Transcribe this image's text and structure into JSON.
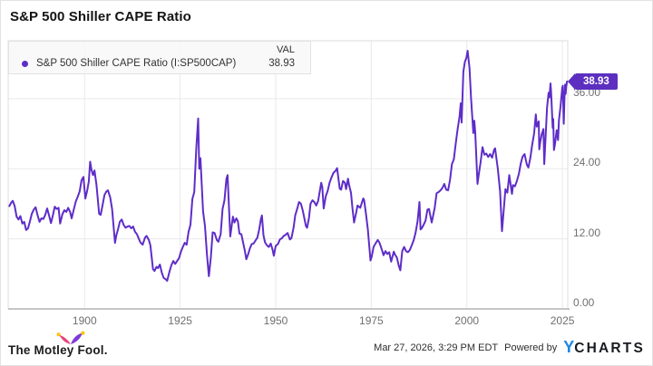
{
  "header": {
    "title": "S&P 500 Shiller CAPE Ratio"
  },
  "legend": {
    "val_header": "VAL",
    "series": [
      {
        "label": "S&P 500 Shiller CAPE Ratio (I:SP500CAP)",
        "value": "38.93",
        "color": "#5e2dc8"
      }
    ]
  },
  "value_tag": {
    "text": "38.93",
    "color": "#5c2fc0"
  },
  "footer": {
    "brand": "The Motley Fool.",
    "timestamp": "Mar 27, 2026, 3:29 PM EDT",
    "powered_by": "Powered by",
    "ycharts": {
      "y": "Y",
      "charts": "CHARTS"
    }
  },
  "chart_data": {
    "type": "line",
    "title": "S&P 500 Shiller CAPE Ratio",
    "series_name": "S&P 500 Shiller CAPE Ratio (I:SP500CAP)",
    "last_value": 38.93,
    "line_color": "#5e2dc8",
    "grid": true,
    "legend_position": "top-left",
    "x_range": [
      1880,
      2026.4
    ],
    "y_range": [
      0,
      45.9
    ],
    "x_ticks": [
      {
        "v": 1900,
        "label": "1900"
      },
      {
        "v": 1925,
        "label": "1925"
      },
      {
        "v": 1950,
        "label": "1950"
      },
      {
        "v": 1975,
        "label": "1975"
      },
      {
        "v": 2000,
        "label": "2000"
      },
      {
        "v": 2025,
        "label": "2025"
      }
    ],
    "y_ticks": [
      {
        "v": 0,
        "label": "0.00"
      },
      {
        "v": 12,
        "label": "12.00"
      },
      {
        "v": 24,
        "label": "24.00"
      },
      {
        "v": 36,
        "label": "36.00"
      }
    ],
    "points": [
      [
        1880.3,
        17.6
      ],
      [
        1880.8,
        18.2
      ],
      [
        1881.2,
        18.5
      ],
      [
        1881.7,
        17.6
      ],
      [
        1882.2,
        15.8
      ],
      [
        1882.7,
        15.3
      ],
      [
        1883.2,
        15.9
      ],
      [
        1883.7,
        14.6
      ],
      [
        1884.2,
        14.9
      ],
      [
        1884.7,
        13.5
      ],
      [
        1885.2,
        13.8
      ],
      [
        1885.7,
        15.0
      ],
      [
        1886.2,
        16.3
      ],
      [
        1886.7,
        17.0
      ],
      [
        1887.2,
        17.4
      ],
      [
        1887.7,
        16.0
      ],
      [
        1888.2,
        14.9
      ],
      [
        1888.7,
        15.5
      ],
      [
        1889.2,
        15.4
      ],
      [
        1889.7,
        16.1
      ],
      [
        1890.2,
        17.2
      ],
      [
        1890.7,
        16.0
      ],
      [
        1891.2,
        14.7
      ],
      [
        1891.7,
        16.0
      ],
      [
        1892.2,
        17.5
      ],
      [
        1892.7,
        17.1
      ],
      [
        1893.2,
        17.3
      ],
      [
        1893.6,
        14.6
      ],
      [
        1894.2,
        16.2
      ],
      [
        1894.7,
        16.9
      ],
      [
        1895.2,
        16.6
      ],
      [
        1895.7,
        17.3
      ],
      [
        1896.2,
        16.6
      ],
      [
        1896.6,
        15.5
      ],
      [
        1897.2,
        17.1
      ],
      [
        1897.7,
        18.4
      ],
      [
        1898.2,
        19.2
      ],
      [
        1898.7,
        20.1
      ],
      [
        1899.2,
        22.0
      ],
      [
        1899.7,
        22.6
      ],
      [
        1900.2,
        18.9
      ],
      [
        1900.7,
        20.3
      ],
      [
        1901.1,
        21.8
      ],
      [
        1901.45,
        25.2
      ],
      [
        1901.8,
        23.8
      ],
      [
        1902.2,
        22.9
      ],
      [
        1902.6,
        23.7
      ],
      [
        1903.1,
        21.2
      ],
      [
        1903.8,
        16.3
      ],
      [
        1904.2,
        16.1
      ],
      [
        1904.8,
        18.1
      ],
      [
        1905.2,
        19.5
      ],
      [
        1905.7,
        20.1
      ],
      [
        1906.1,
        20.3
      ],
      [
        1906.7,
        19.1
      ],
      [
        1907.2,
        17.1
      ],
      [
        1907.95,
        11.3
      ],
      [
        1908.3,
        12.6
      ],
      [
        1908.8,
        13.8
      ],
      [
        1909.2,
        14.9
      ],
      [
        1909.7,
        15.3
      ],
      [
        1910.2,
        14.4
      ],
      [
        1910.7,
        13.9
      ],
      [
        1911.2,
        14.1
      ],
      [
        1911.7,
        14.2
      ],
      [
        1912.2,
        13.8
      ],
      [
        1912.7,
        14.1
      ],
      [
        1913.2,
        13.2
      ],
      [
        1913.7,
        12.8
      ],
      [
        1914.2,
        12.0
      ],
      [
        1914.6,
        11.4
      ],
      [
        1915.2,
        11.0
      ],
      [
        1915.8,
        12.2
      ],
      [
        1916.2,
        12.5
      ],
      [
        1916.8,
        11.8
      ],
      [
        1917.2,
        10.9
      ],
      [
        1917.9,
        6.8
      ],
      [
        1918.3,
        6.5
      ],
      [
        1918.8,
        7.2
      ],
      [
        1919.2,
        7.0
      ],
      [
        1919.7,
        7.6
      ],
      [
        1920.2,
        6.2
      ],
      [
        1920.7,
        5.3
      ],
      [
        1921.2,
        5.1
      ],
      [
        1921.6,
        4.8
      ],
      [
        1922.2,
        6.4
      ],
      [
        1922.7,
        7.5
      ],
      [
        1923.2,
        8.2
      ],
      [
        1923.7,
        7.7
      ],
      [
        1924.2,
        8.2
      ],
      [
        1924.7,
        8.7
      ],
      [
        1925.2,
        9.8
      ],
      [
        1925.7,
        10.6
      ],
      [
        1926.2,
        11.3
      ],
      [
        1926.7,
        11.0
      ],
      [
        1927.2,
        13.2
      ],
      [
        1927.7,
        14.4
      ],
      [
        1928.2,
        18.8
      ],
      [
        1928.7,
        20.0
      ],
      [
        1929.2,
        27.4
      ],
      [
        1929.7,
        32.6
      ],
      [
        1930.0,
        24.0
      ],
      [
        1930.3,
        25.8
      ],
      [
        1931.0,
        16.7
      ],
      [
        1931.5,
        14.2
      ],
      [
        1932.0,
        9.3
      ],
      [
        1932.5,
        5.6
      ],
      [
        1933.0,
        8.7
      ],
      [
        1933.5,
        13.1
      ],
      [
        1934.0,
        13.0
      ],
      [
        1934.6,
        11.8
      ],
      [
        1935.0,
        11.5
      ],
      [
        1935.6,
        12.8
      ],
      [
        1936.1,
        17.1
      ],
      [
        1936.6,
        18.6
      ],
      [
        1937.1,
        22.2
      ],
      [
        1937.4,
        22.9
      ],
      [
        1938.1,
        12.4
      ],
      [
        1938.8,
        15.8
      ],
      [
        1939.2,
        14.8
      ],
      [
        1939.7,
        15.5
      ],
      [
        1940.1,
        15.0
      ],
      [
        1940.5,
        12.9
      ],
      [
        1941.0,
        12.8
      ],
      [
        1941.9,
        10.0
      ],
      [
        1942.3,
        8.5
      ],
      [
        1942.8,
        9.4
      ],
      [
        1943.2,
        10.3
      ],
      [
        1943.7,
        11.1
      ],
      [
        1944.2,
        11.2
      ],
      [
        1944.7,
        11.7
      ],
      [
        1945.2,
        12.2
      ],
      [
        1945.7,
        13.7
      ],
      [
        1946.1,
        15.3
      ],
      [
        1946.4,
        16.0
      ],
      [
        1946.8,
        12.6
      ],
      [
        1947.2,
        11.4
      ],
      [
        1947.7,
        10.9
      ],
      [
        1948.2,
        10.6
      ],
      [
        1948.7,
        11.2
      ],
      [
        1949.2,
        10.1
      ],
      [
        1949.5,
        9.1
      ],
      [
        1950.0,
        10.8
      ],
      [
        1950.6,
        11.1
      ],
      [
        1951.1,
        11.9
      ],
      [
        1951.6,
        12.1
      ],
      [
        1952.1,
        12.5
      ],
      [
        1952.6,
        12.7
      ],
      [
        1953.1,
        13.0
      ],
      [
        1953.7,
        11.9
      ],
      [
        1954.1,
        12.1
      ],
      [
        1954.7,
        14.0
      ],
      [
        1955.1,
        16.0
      ],
      [
        1955.7,
        17.3
      ],
      [
        1956.1,
        18.3
      ],
      [
        1956.6,
        18.0
      ],
      [
        1957.1,
        16.8
      ],
      [
        1957.9,
        14.2
      ],
      [
        1958.2,
        13.9
      ],
      [
        1958.7,
        15.6
      ],
      [
        1959.1,
        18.0
      ],
      [
        1959.6,
        18.6
      ],
      [
        1960.1,
        18.3
      ],
      [
        1960.6,
        17.7
      ],
      [
        1961.1,
        18.5
      ],
      [
        1961.9,
        21.6
      ],
      [
        1962.2,
        20.8
      ],
      [
        1962.55,
        17.2
      ],
      [
        1963.1,
        19.3
      ],
      [
        1963.6,
        20.2
      ],
      [
        1964.1,
        21.6
      ],
      [
        1964.6,
        22.5
      ],
      [
        1965.1,
        23.3
      ],
      [
        1965.6,
        23.6
      ],
      [
        1966.05,
        24.1
      ],
      [
        1966.75,
        20.6
      ],
      [
        1967.1,
        20.4
      ],
      [
        1967.6,
        21.9
      ],
      [
        1968.1,
        21.6
      ],
      [
        1968.4,
        20.5
      ],
      [
        1968.9,
        22.3
      ],
      [
        1969.2,
        21.2
      ],
      [
        1969.7,
        19.9
      ],
      [
        1970.1,
        17.1
      ],
      [
        1970.5,
        14.8
      ],
      [
        1971.1,
        16.6
      ],
      [
        1971.4,
        17.7
      ],
      [
        1972.1,
        17.3
      ],
      [
        1972.9,
        18.9
      ],
      [
        1973.1,
        18.7
      ],
      [
        1973.6,
        16.3
      ],
      [
        1974.1,
        13.6
      ],
      [
        1974.8,
        8.3
      ],
      [
        1975.1,
        8.9
      ],
      [
        1975.6,
        10.6
      ],
      [
        1976.1,
        11.2
      ],
      [
        1976.7,
        11.8
      ],
      [
        1977.1,
        11.4
      ],
      [
        1977.6,
        10.5
      ],
      [
        1978.2,
        9.2
      ],
      [
        1978.7,
        9.9
      ],
      [
        1979.2,
        9.4
      ],
      [
        1979.7,
        9.7
      ],
      [
        1980.2,
        8.1
      ],
      [
        1980.9,
        9.8
      ],
      [
        1981.2,
        9.3
      ],
      [
        1981.7,
        8.8
      ],
      [
        1982.2,
        7.4
      ],
      [
        1982.6,
        6.6
      ],
      [
        1983.1,
        9.9
      ],
      [
        1983.6,
        10.6
      ],
      [
        1984.1,
        9.9
      ],
      [
        1984.6,
        9.7
      ],
      [
        1985.1,
        10.1
      ],
      [
        1985.6,
        10.9
      ],
      [
        1986.1,
        11.8
      ],
      [
        1986.6,
        13.1
      ],
      [
        1987.1,
        15.0
      ],
      [
        1987.6,
        18.3
      ],
      [
        1987.9,
        13.6
      ],
      [
        1988.2,
        13.8
      ],
      [
        1988.7,
        14.4
      ],
      [
        1989.2,
        15.1
      ],
      [
        1989.7,
        17.0
      ],
      [
        1990.1,
        17.1
      ],
      [
        1990.8,
        14.8
      ],
      [
        1991.1,
        15.7
      ],
      [
        1991.6,
        17.3
      ],
      [
        1992.1,
        19.8
      ],
      [
        1992.6,
        20.0
      ],
      [
        1993.1,
        20.3
      ],
      [
        1993.6,
        20.7
      ],
      [
        1994.1,
        21.4
      ],
      [
        1994.6,
        20.4
      ],
      [
        1995.1,
        20.3
      ],
      [
        1995.6,
        22.1
      ],
      [
        1996.1,
        24.8
      ],
      [
        1996.6,
        25.6
      ],
      [
        1997.1,
        28.3
      ],
      [
        1997.6,
        30.8
      ],
      [
        1998.1,
        32.9
      ],
      [
        1998.4,
        35.2
      ],
      [
        1998.65,
        31.9
      ],
      [
        1999.1,
        40.6
      ],
      [
        1999.5,
        42.3
      ],
      [
        1999.9,
        43.0
      ],
      [
        2000.2,
        44.2
      ],
      [
        2000.7,
        41.2
      ],
      [
        2001.1,
        36.0
      ],
      [
        2001.7,
        30.1
      ],
      [
        2001.95,
        32.2
      ],
      [
        2002.2,
        30.2
      ],
      [
        2002.8,
        21.4
      ],
      [
        2003.1,
        22.9
      ],
      [
        2003.6,
        25.1
      ],
      [
        2004.1,
        27.7
      ],
      [
        2004.6,
        26.4
      ],
      [
        2005.1,
        26.6
      ],
      [
        2005.6,
        26.0
      ],
      [
        2006.1,
        26.5
      ],
      [
        2006.6,
        25.9
      ],
      [
        2007.1,
        27.2
      ],
      [
        2007.4,
        27.5
      ],
      [
        2008.1,
        24.0
      ],
      [
        2008.7,
        20.1
      ],
      [
        2009.2,
        13.3
      ],
      [
        2009.6,
        16.5
      ],
      [
        2010.1,
        20.5
      ],
      [
        2010.6,
        19.9
      ],
      [
        2011.1,
        22.9
      ],
      [
        2011.8,
        19.7
      ],
      [
        2012.1,
        21.2
      ],
      [
        2012.6,
        21.0
      ],
      [
        2013.1,
        21.9
      ],
      [
        2013.6,
        23.1
      ],
      [
        2014.1,
        24.9
      ],
      [
        2014.6,
        26.1
      ],
      [
        2015.1,
        26.5
      ],
      [
        2015.7,
        24.7
      ],
      [
        2016.1,
        24.2
      ],
      [
        2016.6,
        25.8
      ],
      [
        2017.1,
        28.1
      ],
      [
        2017.6,
        30.0
      ],
      [
        2018.05,
        33.3
      ],
      [
        2018.3,
        31.2
      ],
      [
        2018.8,
        32.1
      ],
      [
        2018.95,
        27.3
      ],
      [
        2019.2,
        28.6
      ],
      [
        2019.6,
        29.9
      ],
      [
        2020.05,
        30.8
      ],
      [
        2020.25,
        24.8
      ],
      [
        2020.6,
        29.5
      ],
      [
        2021.0,
        34.5
      ],
      [
        2021.4,
        37.0
      ],
      [
        2021.6,
        36.2
      ],
      [
        2021.9,
        38.6
      ],
      [
        2022.05,
        37.0
      ],
      [
        2022.45,
        31.0
      ],
      [
        2022.6,
        32.5
      ],
      [
        2022.8,
        27.2
      ],
      [
        2023.1,
        28.4
      ],
      [
        2023.5,
        30.6
      ],
      [
        2023.85,
        28.9
      ],
      [
        2024.1,
        32.3
      ],
      [
        2024.5,
        34.6
      ],
      [
        2024.95,
        37.8
      ],
      [
        2025.1,
        38.2
      ],
      [
        2025.35,
        31.7
      ],
      [
        2025.55,
        36.1
      ],
      [
        2025.7,
        38.4
      ],
      [
        2025.85,
        36.8
      ],
      [
        2026.0,
        38.1
      ],
      [
        2026.2,
        38.93
      ]
    ]
  }
}
